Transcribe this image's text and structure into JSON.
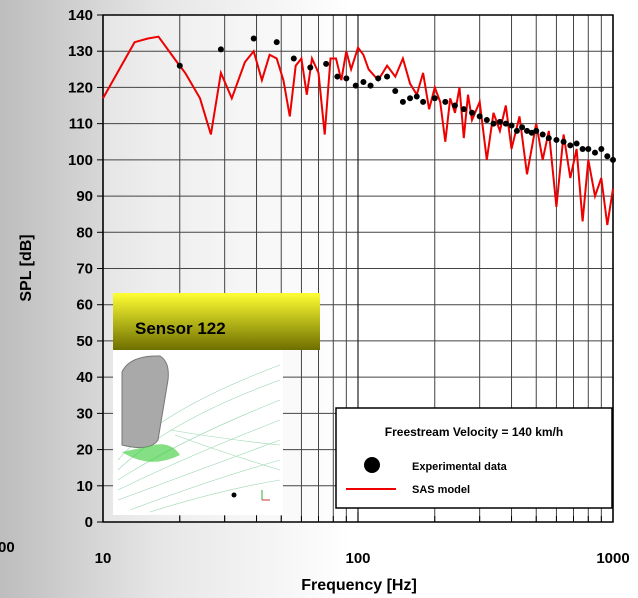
{
  "chart_data": {
    "type": "line",
    "xlabel": "Frequency [Hz]",
    "ylabel": "SPL [dB]",
    "xscale": "log",
    "xlim": [
      10,
      1000
    ],
    "ylim": [
      0,
      140
    ],
    "xticks": [
      10,
      100,
      1000
    ],
    "xminorticks": [
      20,
      30,
      40,
      50,
      60,
      70,
      80,
      90,
      200,
      300,
      400,
      500,
      600,
      700,
      800,
      900
    ],
    "yticks": [
      0,
      10,
      20,
      30,
      40,
      50,
      60,
      70,
      80,
      90,
      100,
      110,
      120,
      130,
      140
    ],
    "grid": true,
    "legend": {
      "title": "Freestream Velocity = 140 km/h",
      "position": "lower right"
    },
    "series": [
      {
        "name": "Experimental data",
        "type": "scatter",
        "color": "#000000",
        "x": [
          20,
          29,
          39,
          48,
          56,
          65,
          75,
          83,
          90,
          98,
          105,
          112,
          120,
          130,
          140,
          150,
          160,
          170,
          180,
          200,
          220,
          240,
          260,
          280,
          300,
          320,
          340,
          360,
          380,
          400,
          420,
          440,
          460,
          480,
          500,
          530,
          560,
          600,
          640,
          680,
          720,
          760,
          800,
          850,
          900,
          950,
          1000
        ],
        "values": [
          126,
          130.5,
          133.5,
          132.5,
          128,
          125.5,
          126.5,
          123,
          122.5,
          120.5,
          121.5,
          120.5,
          122.5,
          123,
          119,
          116,
          117,
          117.5,
          116,
          117,
          116,
          115,
          114,
          113,
          112,
          111,
          110,
          110.5,
          110,
          109.5,
          108,
          109,
          108,
          107.5,
          108,
          107,
          106,
          105.5,
          105,
          104,
          104.5,
          103,
          103,
          102,
          103,
          101,
          100
        ]
      },
      {
        "name": "SAS model",
        "type": "line",
        "color": "#ee0000",
        "x": [
          10,
          13.3,
          15,
          16.5,
          19.5,
          21,
          24,
          26.5,
          29,
          32,
          36,
          39,
          42,
          45,
          48,
          51,
          54,
          57,
          60,
          63,
          66,
          70,
          74,
          78,
          82,
          86,
          90,
          94,
          100,
          105,
          110,
          120,
          130,
          140,
          150,
          160,
          170,
          180,
          190,
          200,
          210,
          220,
          230,
          240,
          250,
          260,
          270,
          280,
          300,
          320,
          340,
          360,
          380,
          400,
          430,
          460,
          500,
          530,
          560,
          600,
          640,
          680,
          720,
          760,
          800,
          850,
          900,
          950,
          1000
        ],
        "values": [
          117,
          132.5,
          133.5,
          134,
          127,
          124,
          117,
          107,
          124,
          117,
          127,
          130,
          122,
          129,
          128,
          122,
          112,
          126,
          128,
          118,
          128,
          124,
          107,
          128,
          128,
          122,
          130,
          125,
          131,
          129,
          125,
          122,
          126,
          123,
          128,
          121,
          118,
          124,
          114,
          120,
          116,
          105,
          117,
          113,
          120,
          106,
          118,
          111,
          116,
          100,
          113,
          108,
          115,
          103,
          112,
          96,
          110,
          100,
          108,
          87,
          107,
          95,
          103,
          83,
          100,
          90,
          95,
          82,
          92
        ]
      }
    ]
  },
  "inset": {
    "label": "Sensor 122"
  },
  "side_label": "00"
}
